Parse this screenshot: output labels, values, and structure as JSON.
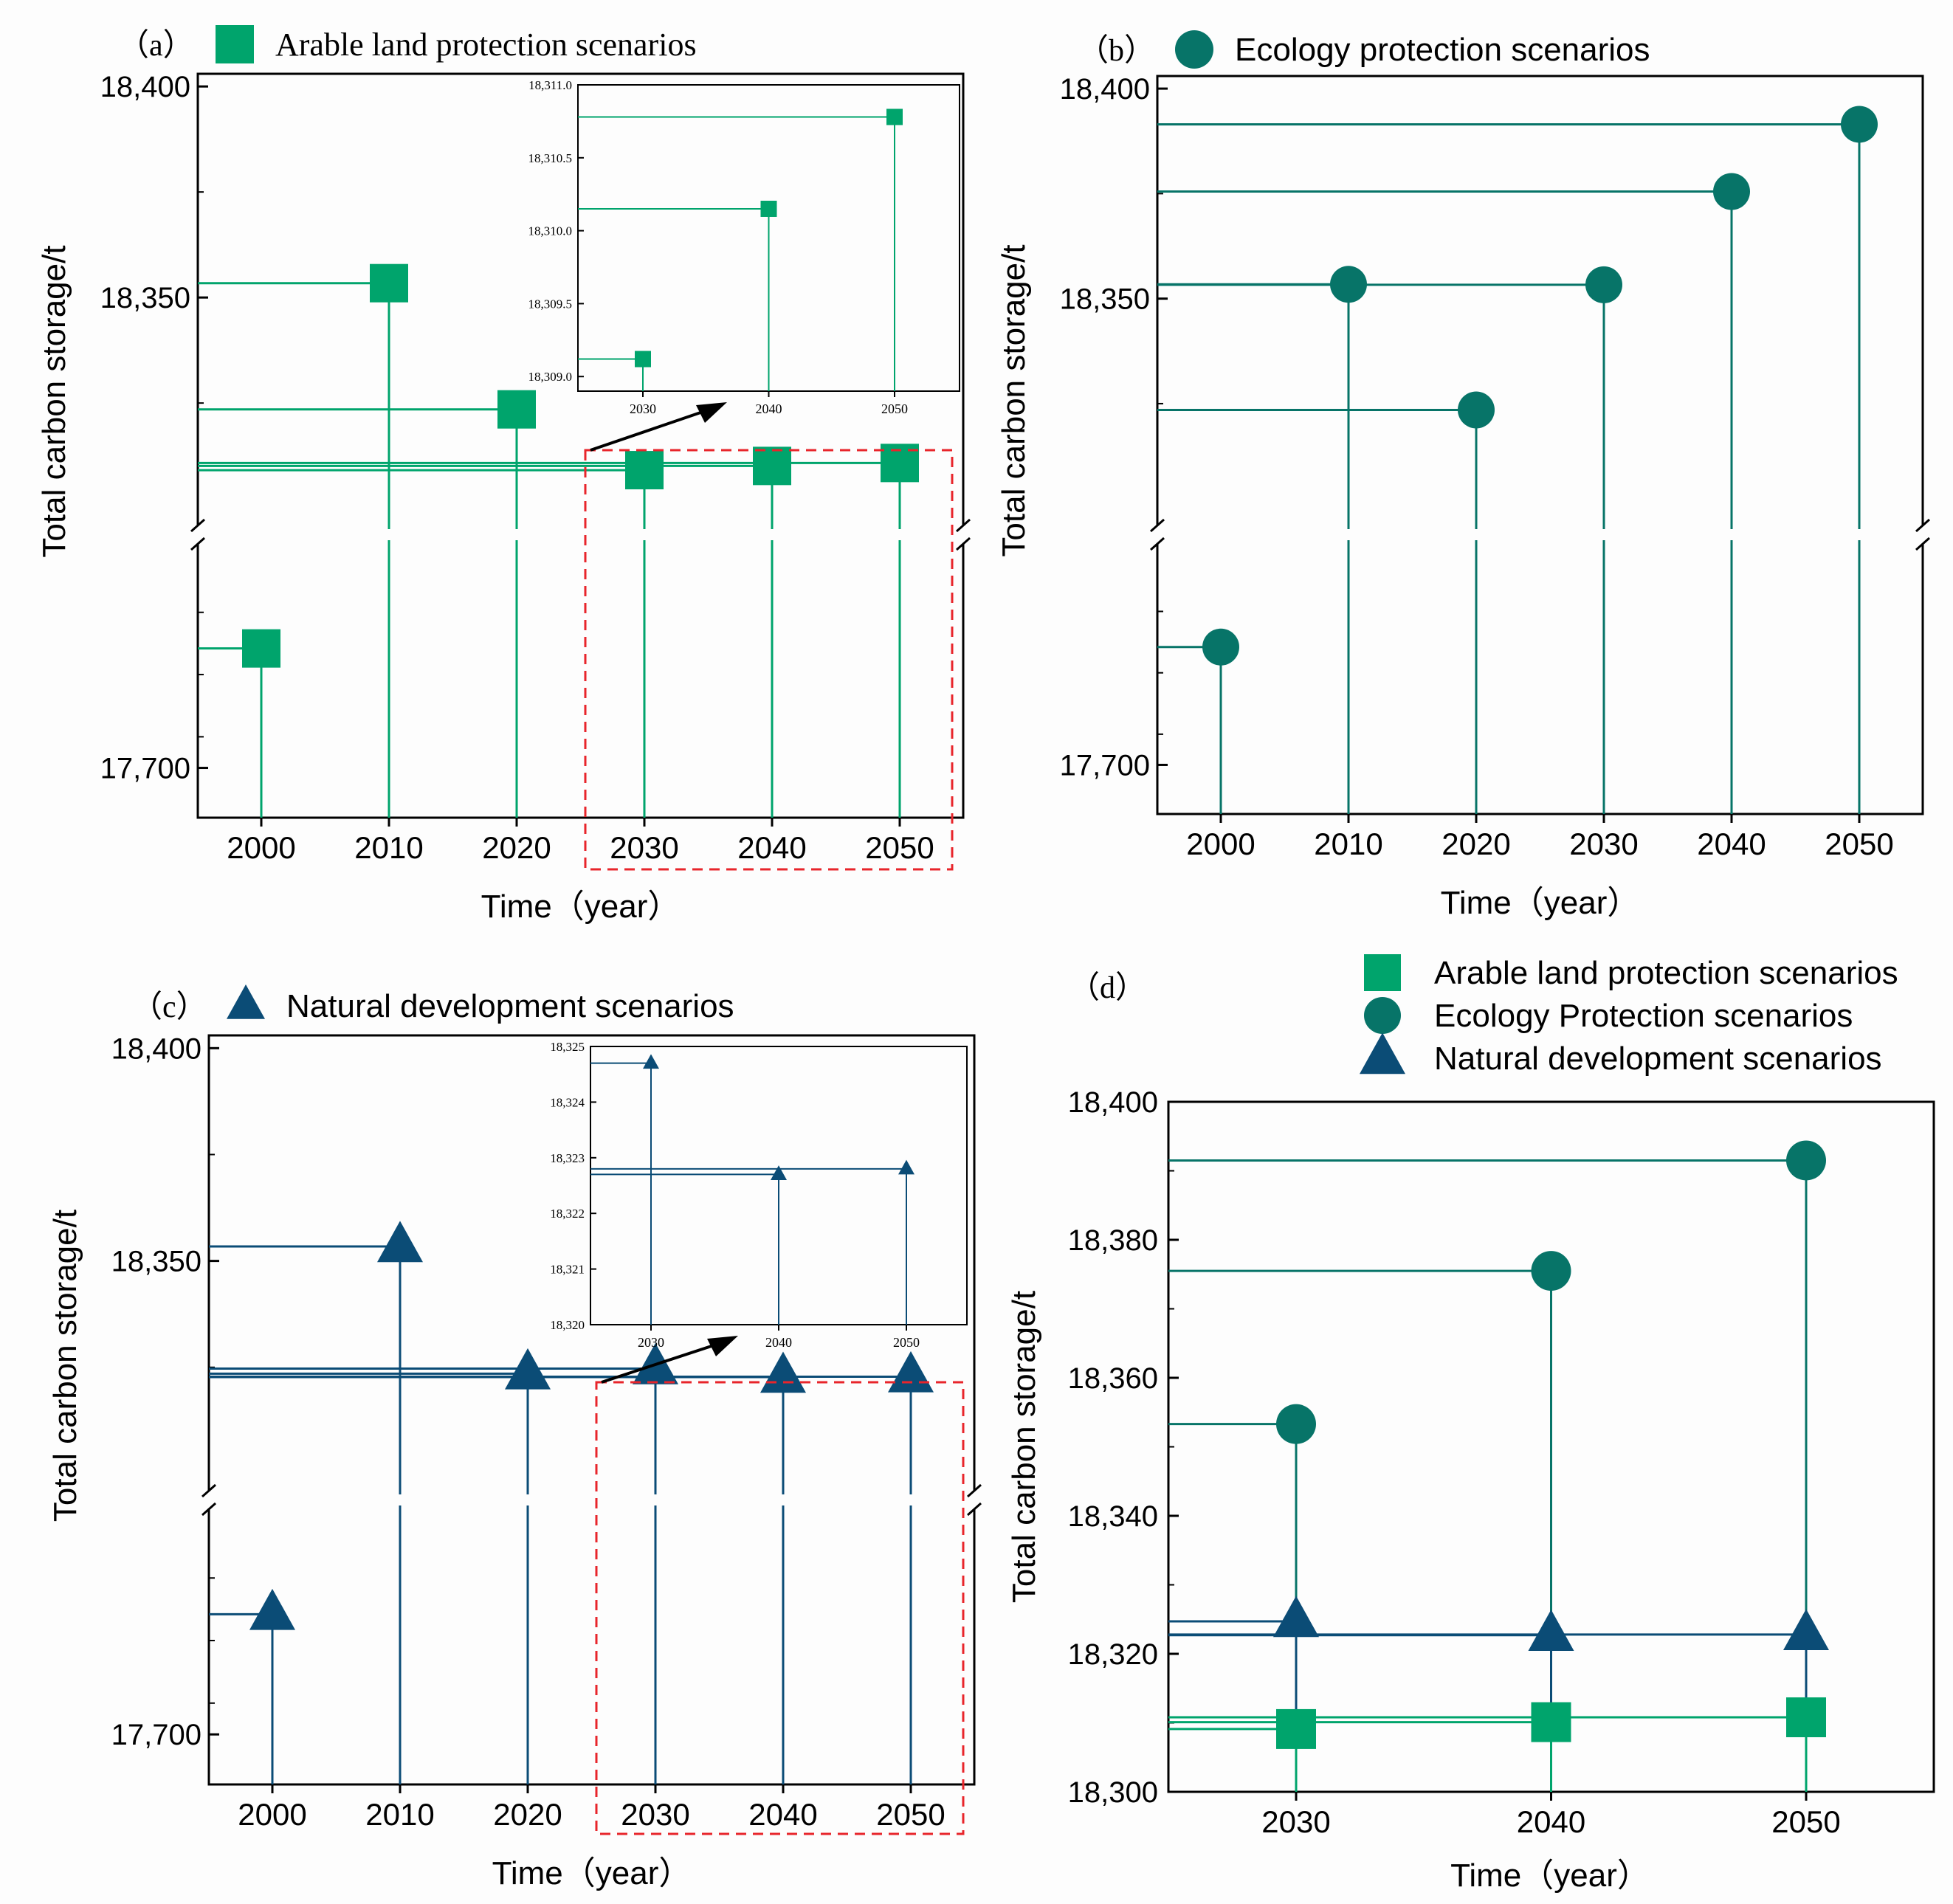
{
  "colors": {
    "green": "#00a46c",
    "teal": "#077468",
    "navy": "#0b4c76",
    "red": "#e8252b",
    "arrow": "#000000"
  },
  "chart_data": [
    {
      "id": "a",
      "panel_label": "（a）",
      "type": "lollipop",
      "legend": [
        {
          "label": "Arable land protection scenarios",
          "marker": "square",
          "color": "green"
        }
      ],
      "xlabel": "Time（year）",
      "ylabel": "Total carbon storage/t",
      "categories": [
        "2000",
        "2010",
        "2020",
        "2030",
        "2040",
        "2050"
      ],
      "values": [
        17796,
        18353.4,
        18323.5,
        18309.1,
        18310.1,
        18310.8
      ],
      "yticks": [
        "18,400",
        "18,350",
        "17,700"
      ],
      "y_break": true,
      "upper_ylim": [
        18296,
        18403
      ],
      "lower_ylim": [
        17660,
        17880
      ],
      "highlight_box": [
        "2030",
        "2050"
      ],
      "inset": {
        "categories": [
          "2030",
          "2040",
          "2050"
        ],
        "values": [
          18309.12,
          18310.15,
          18310.78
        ],
        "ylim": [
          18308.9,
          18311.0
        ],
        "yticks": [
          "18,309.0",
          "18,309.5",
          "18,310.0",
          "18,310.5",
          "18,311.0"
        ]
      }
    },
    {
      "id": "b",
      "panel_label": "（b）",
      "type": "lollipop",
      "legend": [
        {
          "label": "Ecology protection scenarios",
          "marker": "circle",
          "color": "teal"
        }
      ],
      "xlabel": "Time（year）",
      "ylabel": "Total carbon storage/t",
      "categories": [
        "2000",
        "2010",
        "2020",
        "2030",
        "2040",
        "2050"
      ],
      "values": [
        17796,
        18353.4,
        18323.5,
        18353.3,
        18375.5,
        18391.5
      ],
      "yticks": [
        "18,400",
        "18,350",
        "17,700"
      ],
      "y_break": true,
      "upper_ylim": [
        18296,
        18403
      ],
      "lower_ylim": [
        17660,
        17880
      ]
    },
    {
      "id": "c",
      "panel_label": "（c）",
      "type": "lollipop",
      "legend": [
        {
          "label": "Natural development scenarios",
          "marker": "triangle",
          "color": "navy"
        }
      ],
      "xlabel": "Time（year）",
      "ylabel": "Total carbon storage/t",
      "categories": [
        "2000",
        "2010",
        "2020",
        "2030",
        "2040",
        "2050"
      ],
      "values": [
        17796,
        18353.4,
        18323.5,
        18324.7,
        18322.7,
        18322.8
      ],
      "yticks": [
        "18,400",
        "18,350",
        "17,700"
      ],
      "y_break": true,
      "upper_ylim": [
        18296,
        18403
      ],
      "lower_ylim": [
        17660,
        17880
      ],
      "highlight_box": [
        "2030",
        "2050"
      ],
      "inset": {
        "categories": [
          "2030",
          "2040",
          "2050"
        ],
        "values": [
          18324.7,
          18322.7,
          18322.8
        ],
        "ylim": [
          18320,
          18325
        ],
        "yticks": [
          "18,320",
          "18,321",
          "18,322",
          "18,323",
          "18,324",
          "18,325"
        ]
      }
    },
    {
      "id": "d",
      "panel_label": "（d）",
      "type": "lollipop",
      "legend": [
        {
          "label": "Arable land protection scenarios",
          "marker": "square",
          "color": "green"
        },
        {
          "label": "Ecology Protection scenarios",
          "marker": "circle",
          "color": "teal"
        },
        {
          "label": "Natural development scenarios",
          "marker": "triangle",
          "color": "navy"
        }
      ],
      "xlabel": "Time（year）",
      "ylabel": "Total carbon storage/t",
      "categories": [
        "2030",
        "2040",
        "2050"
      ],
      "series": [
        {
          "name": "Ecology Protection scenarios",
          "marker": "circle",
          "color": "teal",
          "values": [
            18353.3,
            18375.5,
            18391.5
          ]
        },
        {
          "name": "Natural development scenarios",
          "marker": "triangle",
          "color": "navy",
          "values": [
            18324.7,
            18322.7,
            18322.8
          ]
        },
        {
          "name": "Arable land protection scenarios",
          "marker": "square",
          "color": "green",
          "values": [
            18309.1,
            18310.1,
            18310.8
          ]
        }
      ],
      "yticks": [
        "18,300",
        "18,320",
        "18,340",
        "18,360",
        "18,380",
        "18,400"
      ],
      "ylim": [
        18300,
        18400
      ]
    }
  ]
}
